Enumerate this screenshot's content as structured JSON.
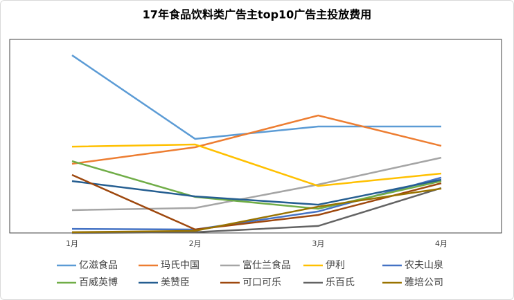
{
  "chart_data": {
    "type": "line",
    "title": "17年食品饮料类广告主top10广告主投放费用",
    "categories": [
      "1月",
      "2月",
      "3月",
      "4月"
    ],
    "ylim": [
      0,
      100
    ],
    "series": [
      {
        "name": "亿滋食品",
        "color": "#5b9bd5",
        "values": [
          91.8,
          48.6,
          55,
          55
        ]
      },
      {
        "name": "玛氏中国",
        "color": "#ed7d31",
        "values": [
          35.7,
          44.3,
          60.7,
          45
        ]
      },
      {
        "name": "富仕兰食品",
        "color": "#a5a5a5",
        "values": [
          11.8,
          12.9,
          25,
          38.9
        ]
      },
      {
        "name": "伊利",
        "color": "#ffc000",
        "values": [
          44.6,
          45.7,
          24.3,
          30.7
        ]
      },
      {
        "name": "农夫山泉",
        "color": "#4472c4",
        "values": [
          2.1,
          1.8,
          11.1,
          28.6
        ]
      },
      {
        "name": "百威英博",
        "color": "#70ad47",
        "values": [
          37.1,
          18.6,
          12.5,
          26.8
        ]
      },
      {
        "name": "美赞臣",
        "color": "#255e91",
        "values": [
          26.8,
          18.9,
          14.6,
          27.5
        ]
      },
      {
        "name": "可口可乐",
        "color": "#9e480e",
        "values": [
          30,
          1.8,
          9.3,
          25.7
        ]
      },
      {
        "name": "乐百氏",
        "color": "#636363",
        "values": [
          0,
          0.4,
          3.6,
          23.2
        ]
      },
      {
        "name": "雅培公司",
        "color": "#997300",
        "values": [
          0.4,
          1.1,
          13.6,
          22.9
        ]
      }
    ]
  }
}
